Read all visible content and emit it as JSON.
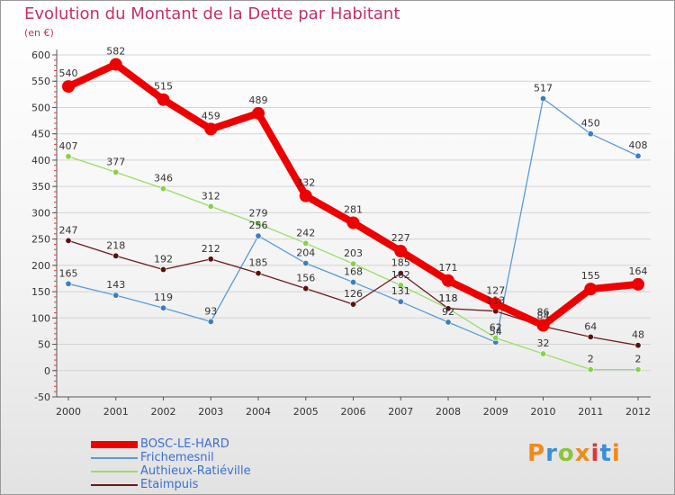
{
  "header": {
    "title": "Evolution du Montant de la Dette par Habitant",
    "unit": "(en €)"
  },
  "brand": {
    "letters": [
      "P",
      "r",
      "o",
      "x",
      "i",
      "t",
      "i"
    ],
    "colors": [
      "#f08a1c",
      "#3c8fd6",
      "#8cc43c",
      "#f08a1c",
      "#d93a3a",
      "#3c8fd6",
      "#f08a1c"
    ]
  },
  "chart_data": {
    "type": "line",
    "title": "Evolution du Montant de la Dette par Habitant",
    "ylabel": "(en €)",
    "xlabel": "",
    "x": [
      "2000",
      "2001",
      "2002",
      "2003",
      "2004",
      "2005",
      "2006",
      "2007",
      "2008",
      "2009",
      "2010",
      "2011",
      "2012"
    ],
    "ylim": [
      -50,
      600
    ],
    "yticks": [
      "-50",
      "0",
      "50",
      "100",
      "150",
      "200",
      "250",
      "300",
      "350",
      "400",
      "450",
      "500",
      "550",
      "600"
    ],
    "legend_position": "bottom-left",
    "series": [
      {
        "name": "BOSC-LE-HARD",
        "color": "#ee0000",
        "style": "thick",
        "values": [
          540,
          582,
          515,
          459,
          489,
          332,
          281,
          227,
          171,
          127,
          86,
          155,
          164
        ],
        "labels": [
          "540",
          "582",
          "515",
          "459",
          "489",
          "332",
          "281",
          "227",
          "171",
          "127",
          "86",
          "155",
          "164"
        ]
      },
      {
        "name": "Frichemesnil",
        "color": "#5b9bd5",
        "style": "thin",
        "values": [
          165,
          143,
          119,
          93,
          256,
          204,
          168,
          131,
          92,
          54,
          517,
          450,
          408
        ],
        "labels": [
          "165",
          "143",
          "119",
          "93",
          "256",
          "204",
          "168",
          "131",
          "92",
          "54",
          "517",
          "450",
          "408"
        ]
      },
      {
        "name": "Authieux-Ratiéville",
        "color": "#99dd66",
        "style": "thin",
        "values": [
          407,
          377,
          346,
          312,
          279,
          242,
          203,
          162,
          118,
          62,
          32,
          2,
          2
        ],
        "labels": [
          "407",
          "377",
          "346",
          "312",
          "279",
          "242",
          "203",
          "162",
          "118",
          "62",
          "32",
          "2",
          "2"
        ]
      },
      {
        "name": "Etaimpuis",
        "color": "#6b1a1a",
        "style": "thin",
        "values": [
          247,
          218,
          192,
          212,
          185,
          156,
          126,
          185,
          118,
          113,
          84,
          64,
          48
        ],
        "labels": [
          "247",
          "218",
          "192",
          "212",
          "185",
          "156",
          "126",
          "185",
          "118",
          "113",
          "84",
          "64",
          "48"
        ]
      }
    ]
  }
}
